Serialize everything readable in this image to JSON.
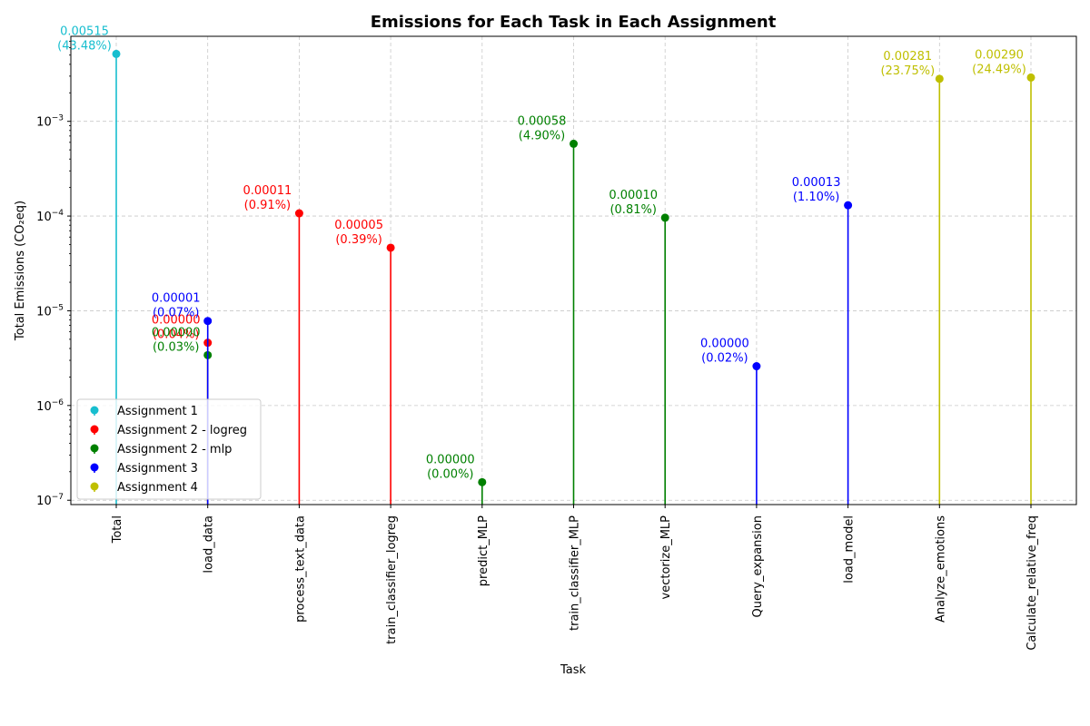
{
  "chart_data": {
    "type": "scatter",
    "subtype": "stem",
    "title": "Emissions for Each Task in Each Assignment",
    "xlabel": "Task",
    "ylabel": "Total Emissions (CO₂eq)",
    "yscale": "log",
    "ylim": [
      9e-08,
      0.0079
    ],
    "yticks": [
      {
        "value": 1e-07,
        "base": "10",
        "exp": "−7"
      },
      {
        "value": 1e-06,
        "base": "10",
        "exp": "−6"
      },
      {
        "value": 1e-05,
        "base": "10",
        "exp": "−5"
      },
      {
        "value": 0.0001,
        "base": "10",
        "exp": "−4"
      },
      {
        "value": 0.001,
        "base": "10",
        "exp": "−3"
      }
    ],
    "grid": true,
    "legend_position": "lower-left",
    "categories": [
      "Total",
      "load_data",
      "process_text_data",
      "train_classifier_logreg",
      "predict_MLP",
      "train_classifier_MLP",
      "vectorize_MLP",
      "Query_expansion",
      "load_model",
      "Analyze_emotions",
      "Calculate_relative_freq"
    ],
    "series": [
      {
        "name": "Assignment 1",
        "color": "#17becf",
        "points": [
          {
            "category": "Total",
            "value": 0.00515,
            "label": "0.00515",
            "pct": "(43.48%)"
          }
        ]
      },
      {
        "name": "Assignment 2 - logreg",
        "color": "#ff0000",
        "points": [
          {
            "category": "load_data",
            "value": 4.6e-06,
            "label": "0.00000",
            "pct": "(0.04%)"
          },
          {
            "category": "process_text_data",
            "value": 0.000107,
            "label": "0.00011",
            "pct": "(0.91%)"
          },
          {
            "category": "train_classifier_logreg",
            "value": 4.63e-05,
            "label": "0.00005",
            "pct": "(0.39%)"
          }
        ]
      },
      {
        "name": "Assignment 2 - mlp",
        "color": "#008000",
        "points": [
          {
            "category": "load_data",
            "value": 3.4e-06,
            "label": "0.00000",
            "pct": "(0.03%)"
          },
          {
            "category": "predict_MLP",
            "value": 1.55e-07,
            "label": "0.00000",
            "pct": "(0.00%)"
          },
          {
            "category": "train_classifier_MLP",
            "value": 0.00058,
            "label": "0.00058",
            "pct": "(4.90%)"
          },
          {
            "category": "vectorize_MLP",
            "value": 9.6e-05,
            "label": "0.00010",
            "pct": "(0.81%)"
          }
        ]
      },
      {
        "name": "Assignment 3",
        "color": "#0000ff",
        "points": [
          {
            "category": "load_data",
            "value": 7.8e-06,
            "label": "0.00001",
            "pct": "(0.07%)"
          },
          {
            "category": "Query_expansion",
            "value": 2.6e-06,
            "label": "0.00000",
            "pct": "(0.02%)"
          },
          {
            "category": "load_model",
            "value": 0.00013,
            "label": "0.00013",
            "pct": "(1.10%)"
          }
        ]
      },
      {
        "name": "Assignment 4",
        "color": "#bfbf00",
        "points": [
          {
            "category": "Analyze_emotions",
            "value": 0.00281,
            "label": "0.00281",
            "pct": "(23.75%)"
          },
          {
            "category": "Calculate_relative_freq",
            "value": 0.0029,
            "label": "0.00290",
            "pct": "(24.49%)"
          }
        ]
      }
    ]
  }
}
